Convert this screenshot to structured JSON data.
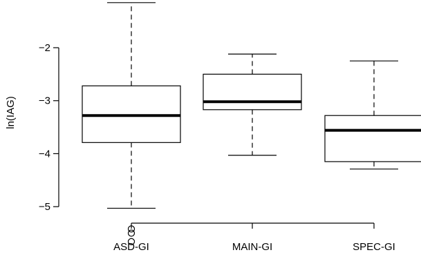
{
  "chart_data": {
    "type": "box",
    "title": "",
    "xlabel": "",
    "ylabel": "ln(IAG)",
    "ylim": [
      -5.95,
      -1.1
    ],
    "yticks": [
      -5,
      -4,
      -3,
      -2
    ],
    "ytick_labels": [
      "−5",
      "−4",
      "−3",
      "−2"
    ],
    "grid": false,
    "categories": [
      "ASD-GI",
      "MAIN-GI",
      "SPEC-GI"
    ],
    "boxes": [
      {
        "category": "ASD-GI",
        "whisker_low": -5.03,
        "q1": -3.79,
        "median": -3.28,
        "q3": -2.72,
        "whisker_high": -1.15,
        "outliers": [
          -5.42,
          -5.5,
          -5.66
        ]
      },
      {
        "category": "MAIN-GI",
        "whisker_low": -4.03,
        "q1": -3.17,
        "median": -3.02,
        "q3": -2.5,
        "whisker_high": -2.12,
        "outliers": []
      },
      {
        "category": "SPEC-GI",
        "whisker_low": -4.29,
        "q1": -4.15,
        "median": -3.56,
        "q3": -3.28,
        "whisker_high": -2.25,
        "outliers": []
      }
    ]
  }
}
